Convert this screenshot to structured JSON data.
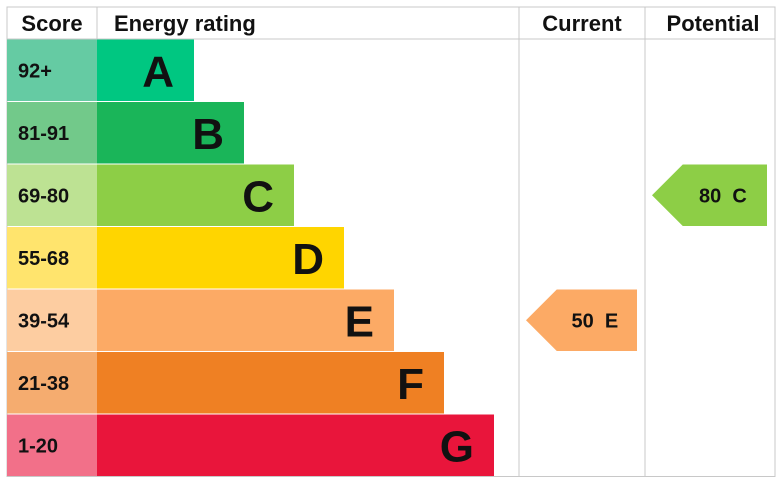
{
  "chart_data": {
    "type": "bar",
    "headers": {
      "score": "Score",
      "rating": "Energy rating",
      "current": "Current",
      "potential": "Potential"
    },
    "bands": [
      {
        "letter": "A",
        "range": "92+",
        "bar_color": "#00c781",
        "score_color": "#65cba3"
      },
      {
        "letter": "B",
        "range": "81-91",
        "bar_color": "#1ab559",
        "score_color": "#72c98a"
      },
      {
        "letter": "C",
        "range": "69-80",
        "bar_color": "#8dce46",
        "score_color": "#bde293"
      },
      {
        "letter": "D",
        "range": "55-68",
        "bar_color": "#ffd500",
        "score_color": "#ffe46d"
      },
      {
        "letter": "E",
        "range": "39-54",
        "bar_color": "#fcaa65",
        "score_color": "#fdcda1"
      },
      {
        "letter": "F",
        "range": "21-38",
        "bar_color": "#ef8023",
        "score_color": "#f5ac6f"
      },
      {
        "letter": "G",
        "range": "1-20",
        "bar_color": "#e9153b",
        "score_color": "#f27089"
      }
    ],
    "current": {
      "value": 50,
      "band": "E",
      "label": "50  E",
      "color": "#fcaa65"
    },
    "potential": {
      "value": 80,
      "band": "C",
      "label": "80  C",
      "color": "#8dce46"
    }
  }
}
